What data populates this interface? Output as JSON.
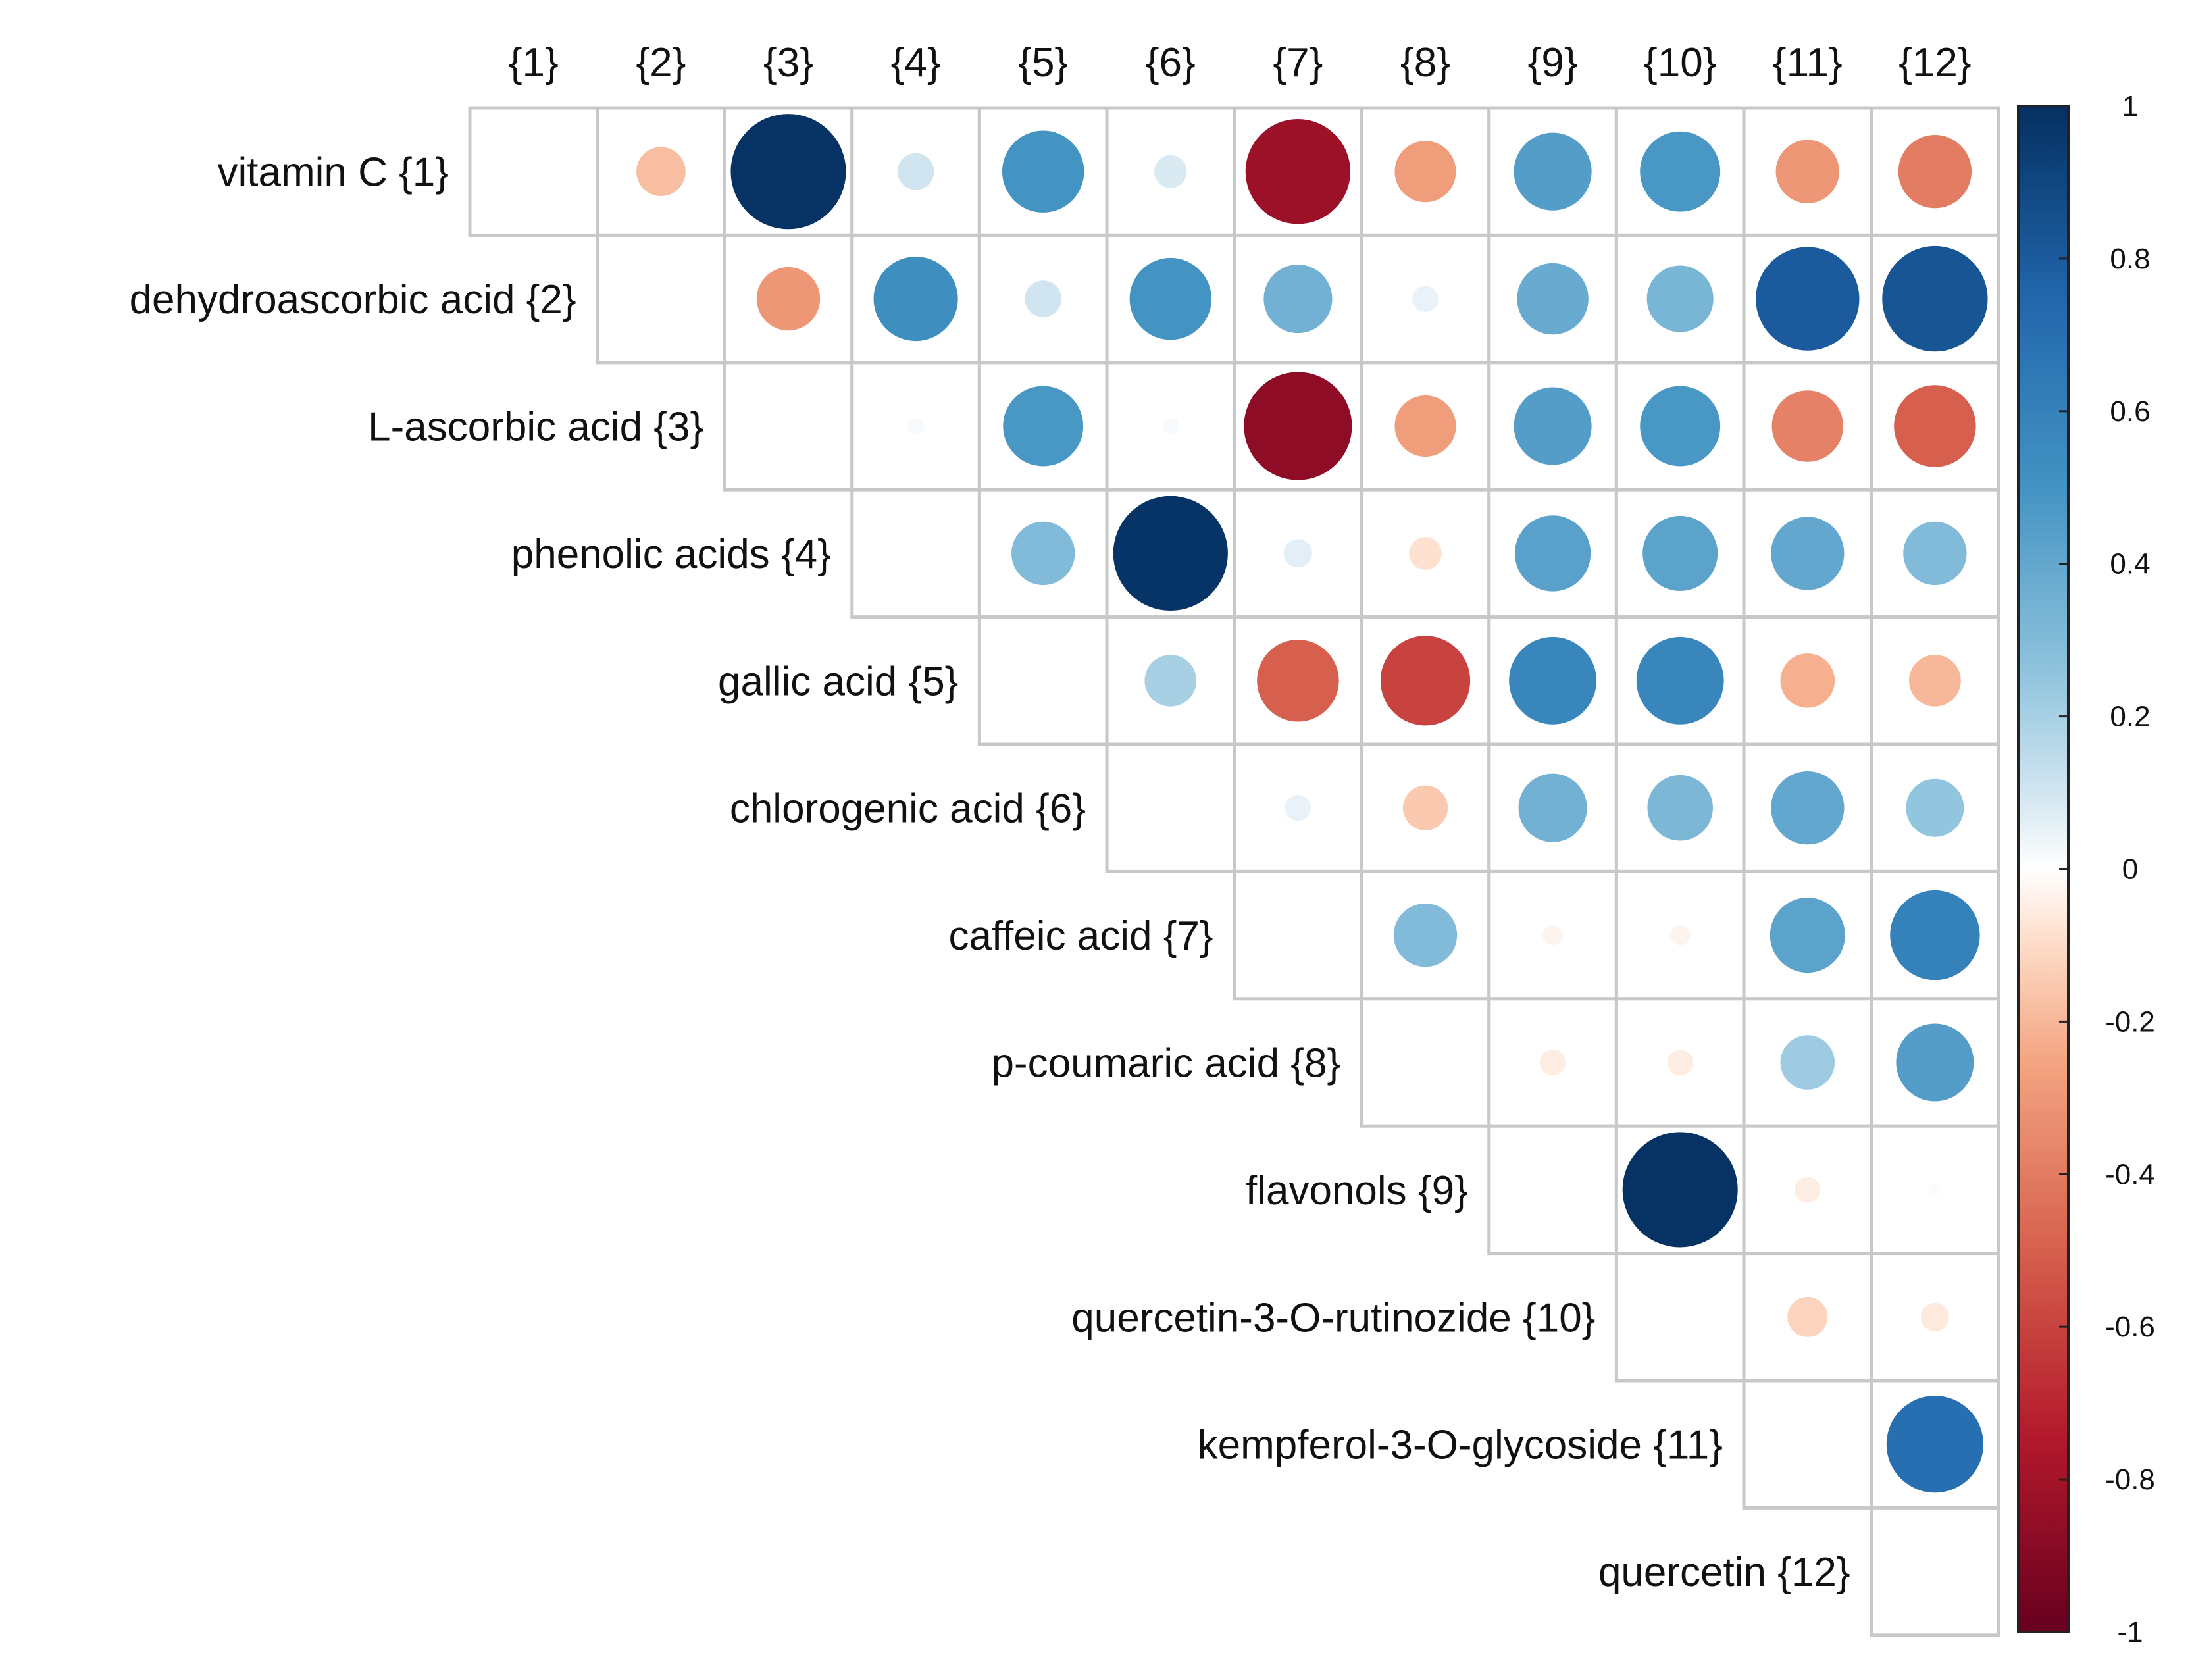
{
  "chart_data": {
    "type": "heatmap",
    "variant": "correlation-upper-triangle",
    "labels": [
      "vitamin C {1}",
      "dehydroascorbic acid {2}",
      "L-ascorbic acid {3}",
      "phenolic acids {4}",
      "gallic acid {5}",
      "chlorogenic acid {6}",
      "caffeic acid {7}",
      "p-coumaric acid {8}",
      "flavonols {9}",
      "quercetin-3-O-rutinozide {10}",
      "kempferol-3-O-glycoside {11}",
      "quercetin {12}"
    ],
    "column_labels": [
      "{1}",
      "{2}",
      "{3}",
      "{4}",
      "{5}",
      "{6}",
      "{7}",
      "{8}",
      "{9}",
      "{10}",
      "{11}",
      "{12}"
    ],
    "matrix": [
      [
        null,
        -0.18,
        0.99,
        0.1,
        0.5,
        0.08,
        -0.82,
        -0.28,
        0.45,
        0.48,
        -0.3,
        -0.4
      ],
      [
        null,
        null,
        -0.3,
        0.53,
        0.1,
        0.5,
        0.35,
        0.05,
        0.38,
        0.33,
        0.8,
        0.83
      ],
      [
        null,
        null,
        null,
        0.02,
        0.48,
        0.02,
        -0.87,
        -0.28,
        0.45,
        0.48,
        -0.38,
        -0.5
      ],
      [
        null,
        null,
        null,
        null,
        0.3,
        0.98,
        0.06,
        -0.08,
        0.43,
        0.42,
        0.4,
        0.3
      ],
      [
        null,
        null,
        null,
        null,
        null,
        0.2,
        -0.5,
        -0.6,
        0.57,
        0.57,
        -0.22,
        -0.2
      ],
      [
        null,
        null,
        null,
        null,
        null,
        null,
        0.05,
        -0.15,
        0.35,
        0.32,
        0.4,
        0.25
      ],
      [
        null,
        null,
        null,
        null,
        null,
        null,
        null,
        0.3,
        -0.03,
        -0.03,
        0.42,
        0.6
      ],
      [
        null,
        null,
        null,
        null,
        null,
        null,
        null,
        null,
        -0.05,
        -0.05,
        0.22,
        0.45
      ],
      [
        null,
        null,
        null,
        null,
        null,
        null,
        null,
        null,
        null,
        0.99,
        -0.05,
        -0.01
      ],
      [
        null,
        null,
        null,
        null,
        null,
        null,
        null,
        null,
        null,
        null,
        -0.12,
        -0.06
      ],
      [
        null,
        null,
        null,
        null,
        null,
        null,
        null,
        null,
        null,
        null,
        null,
        0.7
      ],
      [
        null,
        null,
        null,
        null,
        null,
        null,
        null,
        null,
        null,
        null,
        null,
        null
      ]
    ],
    "colorbar": {
      "range": [
        -1,
        1
      ],
      "tick_values": [
        1,
        0.8,
        0.6,
        0.4,
        0.2,
        0,
        -0.2,
        -0.4,
        -0.6,
        -0.8,
        -1
      ],
      "tick_labels": [
        "1",
        "0.8",
        "0.6",
        "0.4",
        "0.2",
        "0",
        "-0.2",
        "-0.4",
        "-0.6",
        "-0.8",
        "-1"
      ],
      "stops": [
        {
          "value": -1,
          "color": "#67001f"
        },
        {
          "value": -0.75,
          "color": "#b2182b"
        },
        {
          "value": -0.5,
          "color": "#d6604d"
        },
        {
          "value": -0.25,
          "color": "#f4a582"
        },
        {
          "value": -0.1,
          "color": "#fddbc7"
        },
        {
          "value": 0,
          "color": "#ffffff"
        },
        {
          "value": 0.1,
          "color": "#d1e5f0"
        },
        {
          "value": 0.25,
          "color": "#92c5de"
        },
        {
          "value": 0.5,
          "color": "#4393c3"
        },
        {
          "value": 0.75,
          "color": "#2166ac"
        },
        {
          "value": 1,
          "color": "#053061"
        }
      ]
    },
    "title": "",
    "xlabel": "",
    "ylabel": "",
    "legend": "right"
  },
  "colors": {
    "grid": "#c8c8c8",
    "text": "#111111",
    "colorbar_border": "#222222"
  }
}
